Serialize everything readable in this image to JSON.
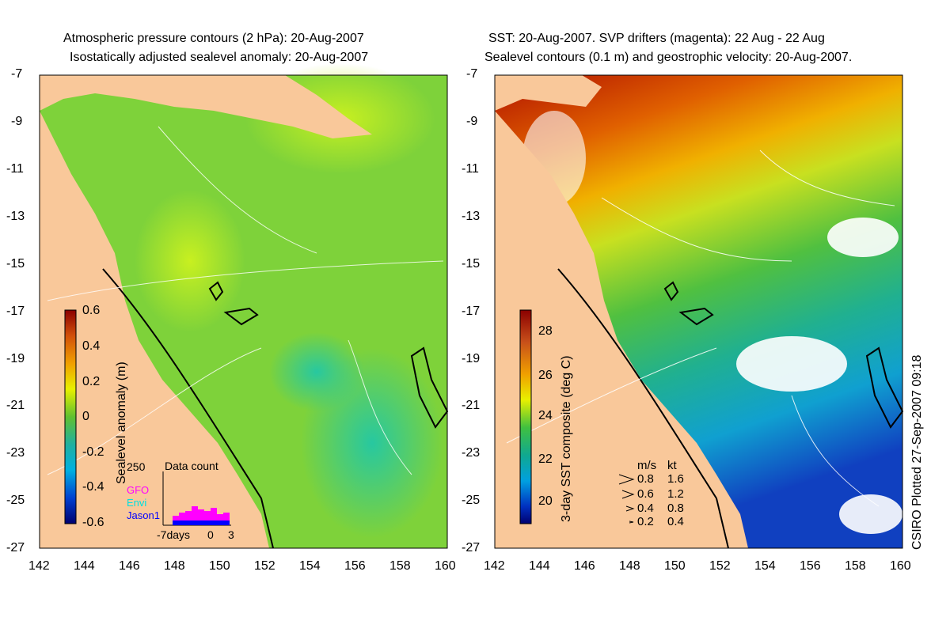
{
  "left_panel": {
    "title_line1": "Atmospheric pressure contours (2 hPa): 20-Aug-2007",
    "title_line2": "Isostatically adjusted sealevel anomaly: 20-Aug-2007",
    "colorbar": {
      "label": "Sealevel anomaly (m)",
      "ticks": [
        "0.6",
        "0.4",
        "0.2",
        "0",
        "-0.2",
        "-0.4",
        "-0.6"
      ],
      "range": [
        -0.6,
        0.6
      ]
    },
    "inset": {
      "title": "Data count",
      "ymax": "250",
      "legend": [
        "GFO",
        "Envi",
        "Jason1"
      ],
      "legend_colors": [
        "#ff00ff",
        "#00e0e0",
        "#0000ff"
      ],
      "x_ticks": [
        "-7days",
        "0",
        "3"
      ]
    }
  },
  "right_panel": {
    "title_line1": "SST: 20-Aug-2007. SVP drifters (magenta): 22 Aug - 22 Aug",
    "title_line2": "Sealevel contours (0.1 m) and geostrophic velocity: 20-Aug-2007.",
    "colorbar": {
      "label": "3-day SST composite (deg C)",
      "ticks": [
        "28",
        "26",
        "24",
        "22",
        "20"
      ],
      "range": [
        19,
        29
      ]
    },
    "velocity_key": {
      "header_ms": "m/s",
      "header_kt": "kt",
      "rows": [
        {
          "ms": "0.8",
          "kt": "1.6"
        },
        {
          "ms": "0.6",
          "kt": "1.2"
        },
        {
          "ms": "0.4",
          "kt": "0.8"
        },
        {
          "ms": "0.2",
          "kt": "0.4"
        }
      ]
    },
    "credit": "CSIRO Plotted 27-Sep-2007 09:18"
  },
  "axes": {
    "y_ticks": [
      "-7",
      "-9",
      "-11",
      "-13",
      "-15",
      "-17",
      "-19",
      "-21",
      "-23",
      "-25",
      "-27"
    ],
    "x_ticks": [
      "142",
      "144",
      "146",
      "148",
      "150",
      "152",
      "154",
      "156",
      "158",
      "160"
    ]
  },
  "colors": {
    "land": "#f9c89a",
    "sla_mid": "#7ed23a",
    "coast": "#000000"
  }
}
